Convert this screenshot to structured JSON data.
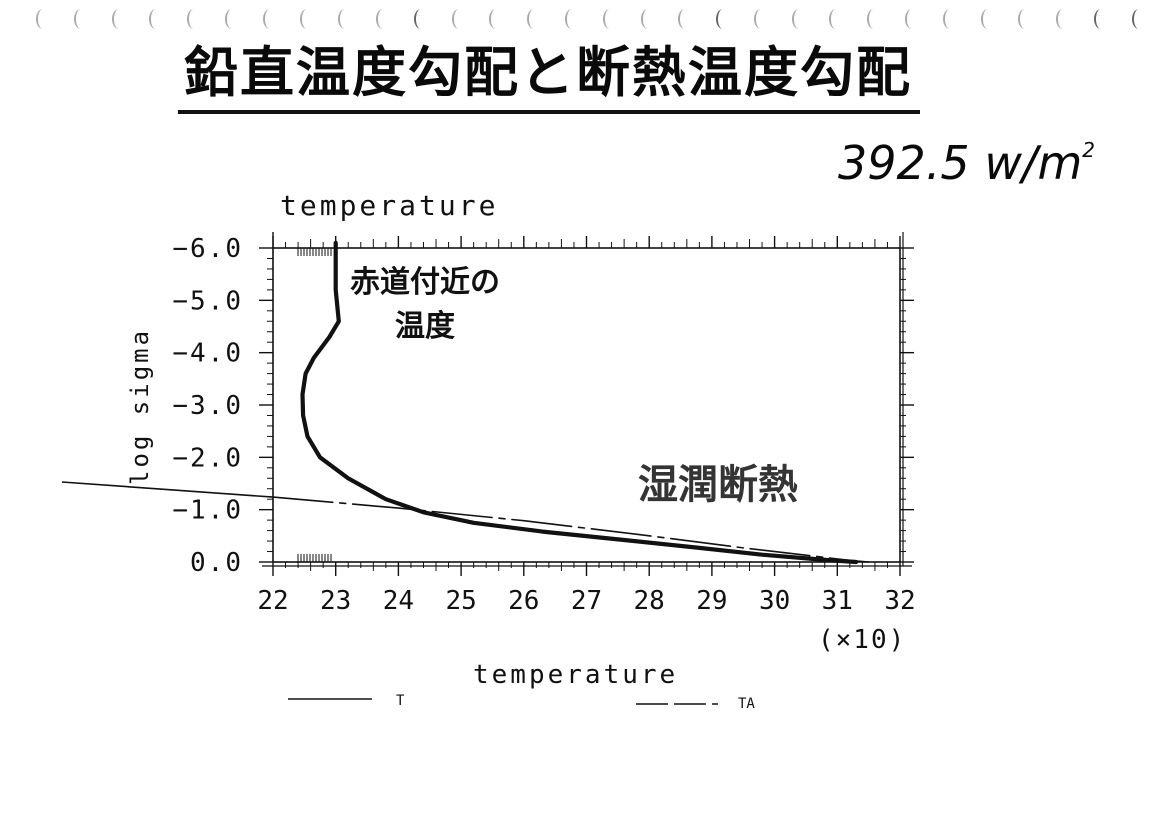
{
  "page": {
    "title": "鉛直温度勾配と断熱温度勾配",
    "flux_note": {
      "value": "392.5",
      "unit": "w/m",
      "superscript": "2"
    }
  },
  "annotations": {
    "curve_note_line1": "赤道付近の",
    "curve_note_line2": "温度",
    "adiabat_note": "湿潤断熱"
  },
  "chart_data": {
    "type": "line",
    "title": "temperature",
    "xlabel": "temperature",
    "ylabel": "log sigma",
    "x_scale_note": "(×10)",
    "xlim": [
      22,
      32
    ],
    "ylim": [
      0.0,
      -6.0
    ],
    "x_tick_labels": [
      "22",
      "23",
      "24",
      "25",
      "26",
      "27",
      "28",
      "29",
      "30",
      "31",
      "32"
    ],
    "y_tick_labels": [
      "-6.0",
      "-5.0",
      "-4.0",
      "-3.0",
      "-2.0",
      "-1.0",
      "0.0"
    ],
    "legend": [
      {
        "label": "T",
        "style": "solid"
      },
      {
        "label": "TA",
        "style": "dashed"
      }
    ],
    "legend_placement": "bottom",
    "series": [
      {
        "name": "T",
        "style": "solid",
        "color": "#111111",
        "points": [
          [
            23.0,
            -6.1
          ],
          [
            23.0,
            -5.2
          ],
          [
            23.05,
            -4.6
          ],
          [
            22.9,
            -4.3
          ],
          [
            22.65,
            -3.9
          ],
          [
            22.52,
            -3.6
          ],
          [
            22.47,
            -3.2
          ],
          [
            22.48,
            -2.8
          ],
          [
            22.55,
            -2.4
          ],
          [
            22.75,
            -2.0
          ],
          [
            23.2,
            -1.6
          ],
          [
            23.8,
            -1.2
          ],
          [
            24.4,
            -0.95
          ],
          [
            25.2,
            -0.75
          ],
          [
            26.3,
            -0.58
          ],
          [
            27.6,
            -0.42
          ],
          [
            28.8,
            -0.27
          ],
          [
            29.8,
            -0.14
          ],
          [
            30.8,
            -0.04
          ],
          [
            31.3,
            0.0
          ]
        ]
      },
      {
        "name": "TA",
        "style": "dashed",
        "color": "#111111",
        "points": [
          [
            22.0,
            -1.24
          ],
          [
            24.0,
            -1.03
          ],
          [
            26.0,
            -0.79
          ],
          [
            28.0,
            -0.5
          ],
          [
            29.5,
            -0.27
          ],
          [
            30.5,
            -0.13
          ],
          [
            31.2,
            -0.03
          ],
          [
            31.5,
            0.0
          ]
        ]
      }
    ]
  }
}
